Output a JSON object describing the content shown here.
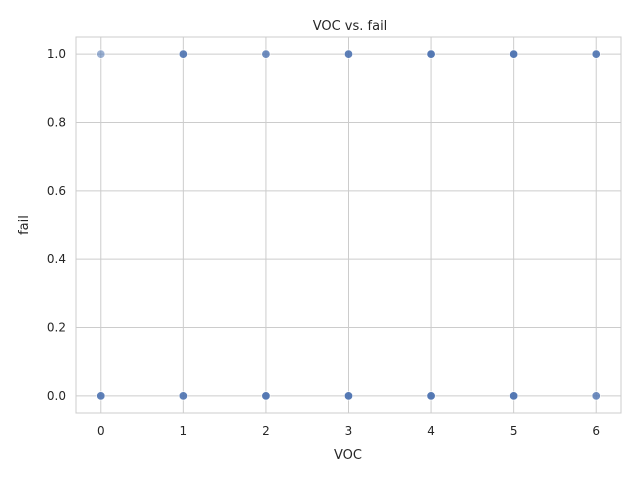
{
  "chart_data": {
    "type": "scatter",
    "title": "VOC vs. fail",
    "xlabel": "VOC",
    "ylabel": "fail",
    "xlim": [
      -0.3,
      6.3
    ],
    "ylim": [
      -0.05,
      1.05
    ],
    "xticks": [
      0,
      1,
      2,
      3,
      4,
      5,
      6
    ],
    "yticks": [
      0.0,
      0.2,
      0.4,
      0.6,
      0.8,
      1.0
    ],
    "ytick_labels": [
      "0.0",
      "0.2",
      "0.4",
      "0.6",
      "0.8",
      "1.0"
    ],
    "grid": true,
    "legend": "none",
    "marker_color": "#4c72b0",
    "points": [
      {
        "x": 0,
        "y": 1,
        "alpha": 0.55
      },
      {
        "x": 1,
        "y": 1,
        "alpha": 0.9
      },
      {
        "x": 2,
        "y": 1,
        "alpha": 0.8
      },
      {
        "x": 3,
        "y": 1,
        "alpha": 0.9
      },
      {
        "x": 4,
        "y": 1,
        "alpha": 0.95
      },
      {
        "x": 5,
        "y": 1,
        "alpha": 0.95
      },
      {
        "x": 6,
        "y": 1,
        "alpha": 0.9
      },
      {
        "x": 0,
        "y": 0,
        "alpha": 0.9
      },
      {
        "x": 1,
        "y": 0,
        "alpha": 0.9
      },
      {
        "x": 2,
        "y": 0,
        "alpha": 0.95
      },
      {
        "x": 3,
        "y": 0,
        "alpha": 0.95
      },
      {
        "x": 4,
        "y": 0,
        "alpha": 0.95
      },
      {
        "x": 5,
        "y": 0,
        "alpha": 0.95
      },
      {
        "x": 6,
        "y": 0,
        "alpha": 0.8
      }
    ]
  }
}
